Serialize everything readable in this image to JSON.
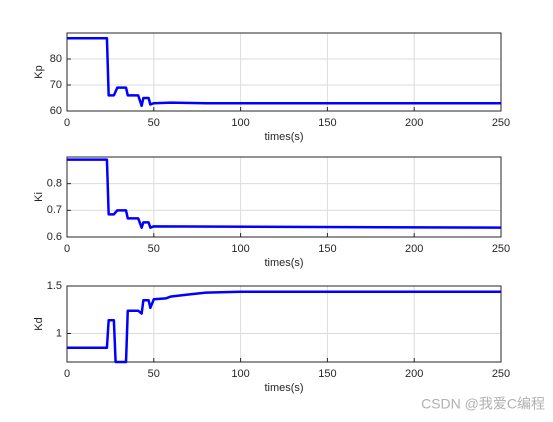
{
  "chart_data": [
    {
      "type": "line",
      "xlabel": "times(s)",
      "ylabel": "Kp",
      "x": [
        0,
        23,
        24,
        27,
        29,
        34,
        35,
        41,
        43,
        44,
        47,
        48,
        50,
        60,
        80,
        250
      ],
      "series": [
        {
          "color": "#0000ff",
          "values": [
            88,
            88,
            66,
            66,
            69,
            69,
            66,
            66,
            62,
            65,
            65,
            62.5,
            63,
            63.2,
            63,
            63
          ]
        }
      ],
      "xlim": [
        0,
        250
      ],
      "xticks": [
        0,
        50,
        100,
        150,
        200,
        250
      ],
      "ylim": [
        60,
        90
      ],
      "yticks": [
        60,
        70,
        80
      ],
      "grid": true
    },
    {
      "type": "line",
      "xlabel": "times(s)",
      "ylabel": "Ki",
      "x": [
        0,
        23,
        24,
        27,
        29,
        34,
        35,
        41,
        43,
        44,
        47,
        48,
        50,
        250
      ],
      "series": [
        {
          "color": "#0000ff",
          "values": [
            0.89,
            0.89,
            0.685,
            0.685,
            0.7,
            0.7,
            0.67,
            0.67,
            0.635,
            0.655,
            0.655,
            0.635,
            0.64,
            0.635
          ]
        }
      ],
      "xlim": [
        0,
        250
      ],
      "xticks": [
        0,
        50,
        100,
        150,
        200,
        250
      ],
      "ylim": [
        0.6,
        0.9
      ],
      "yticks": [
        0.6,
        0.7,
        0.8
      ],
      "grid": true
    },
    {
      "type": "line",
      "xlabel": "times(s)",
      "ylabel": "Kd",
      "x": [
        0,
        23,
        24,
        27,
        28,
        34,
        35,
        41,
        43,
        44,
        47,
        48,
        50,
        57,
        60,
        70,
        80,
        100,
        250
      ],
      "series": [
        {
          "color": "#0000ff",
          "values": [
            0.85,
            0.85,
            1.14,
            1.14,
            0.7,
            0.7,
            1.24,
            1.24,
            1.21,
            1.35,
            1.35,
            1.27,
            1.36,
            1.37,
            1.39,
            1.41,
            1.43,
            1.44,
            1.44
          ]
        }
      ],
      "xlim": [
        0,
        250
      ],
      "xticks": [
        0,
        50,
        100,
        150,
        200,
        250
      ],
      "ylim": [
        0.7,
        1.5
      ],
      "yticks": [
        1,
        1.5
      ],
      "grid": true
    }
  ],
  "watermark": "CSDN @我爱C编程"
}
